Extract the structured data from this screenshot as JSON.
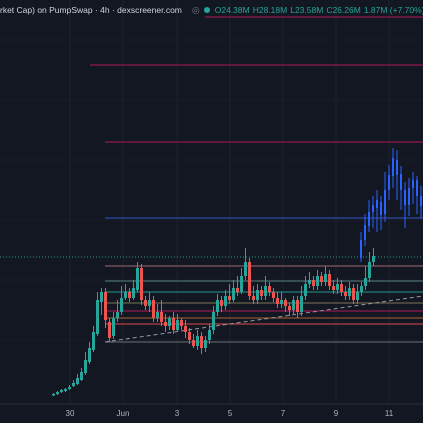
{
  "legend": {
    "title": "rket Cap) on PumpSwap · 4h · dexscreener.com",
    "eye_icon": "eye-icon",
    "status_color": "#26a69a",
    "open": "O24.38M",
    "high": "H28.18M",
    "low": "L23.58M",
    "close": "C26.26M",
    "change": "1.87M (+7.70%)"
  },
  "colors": {
    "background": "#131722",
    "up": "#26a69a",
    "down": "#ef5350",
    "highlight": "#2962ff",
    "resistance": "#c2185b",
    "mid": "#3a5bd9",
    "trendline": "#9598a1"
  },
  "x_axis": {
    "labels": [
      "30",
      "Jun",
      "3",
      "5",
      "7",
      "9",
      "11"
    ]
  },
  "chart_data": {
    "type": "candlestick",
    "timeframe": "4h",
    "unit": "USD market cap",
    "last_candle": {
      "open": 24.38,
      "high": 28.18,
      "low": 23.58,
      "close": 26.26,
      "change": 1.87,
      "change_pct": 7.7
    }
  }
}
